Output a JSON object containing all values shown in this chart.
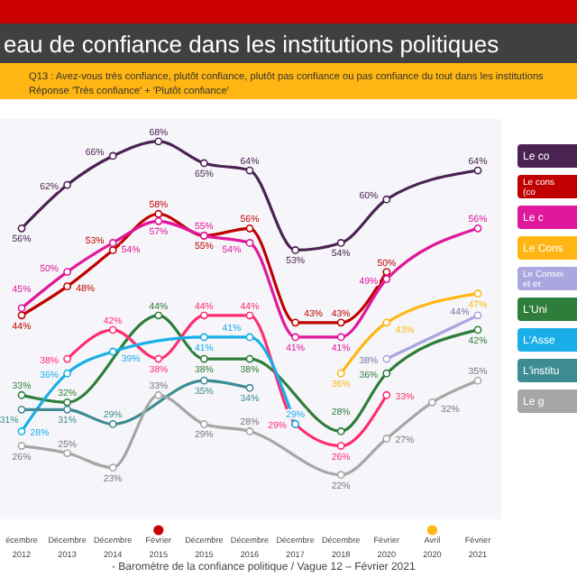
{
  "chart_data": {
    "type": "line",
    "title": "eau de confiance dans les institutions politiques",
    "subtitle": "Q13 : Avez-vous très confiance, plutôt confiance, plutôt pas confiance ou pas confiance du tout dans les institutions\nRéponse 'Très confiance' + 'Plutôt confiance'",
    "categories": [
      "écembre 2012",
      "Décembre 2013",
      "Décembre 2014",
      "Février 2015",
      "Décembre 2015",
      "Décembre 2016",
      "Décembre 2017",
      "Décembre 2018",
      "Février 2020",
      "Avril 2020",
      "Février 2021"
    ],
    "marker": "circle",
    "legend": "right",
    "series": [
      {
        "name": "Le co",
        "color": "#4b2352",
        "values": [
          56,
          62,
          66,
          68,
          65,
          64,
          53,
          54,
          60,
          null,
          64
        ],
        "value_labels": [
          "56%",
          "62%",
          "66%",
          "68%",
          "65%",
          "64%",
          "53%",
          "54%",
          "60%",
          null,
          "64%"
        ]
      },
      {
        "name": "Le cons\n(co",
        "color": "#c00000",
        "values": [
          44,
          48,
          53,
          58,
          55,
          56,
          43,
          43,
          50,
          null,
          null
        ],
        "value_labels": [
          "44%",
          "48%",
          "53%",
          "58%",
          "55%",
          "56%",
          "43%",
          "43%",
          "50%",
          null,
          null
        ]
      },
      {
        "name": "Le c",
        "color": "#e0189b",
        "values": [
          45,
          50,
          54,
          57,
          55,
          54,
          41,
          41,
          49,
          null,
          56
        ],
        "value_labels": [
          "45%",
          "50%",
          "54%",
          "57%",
          "55%",
          "54%",
          "41%",
          "41%",
          "49%",
          null,
          "56%"
        ]
      },
      {
        "name": "Le Cons",
        "color": "#ffb612",
        "values": [
          null,
          null,
          null,
          null,
          null,
          null,
          null,
          36,
          43,
          null,
          47
        ],
        "value_labels": [
          null,
          null,
          null,
          null,
          null,
          null,
          null,
          "36%",
          "43%",
          null,
          "47%"
        ]
      },
      {
        "name": "Le Consei\net er",
        "color": "#a9a6e0",
        "values": [
          null,
          null,
          null,
          null,
          null,
          null,
          null,
          null,
          38,
          null,
          44
        ],
        "value_labels": [
          null,
          null,
          null,
          null,
          null,
          null,
          null,
          null,
          "38%",
          null,
          "44%"
        ]
      },
      {
        "name": "L'Uni",
        "color": "#2e7d3a",
        "values": [
          33,
          32,
          null,
          44,
          38,
          38,
          null,
          28,
          36,
          null,
          42
        ],
        "value_labels": [
          "33%",
          "32%",
          null,
          "44%",
          "38%",
          "38%",
          null,
          "28%",
          "36%",
          null,
          "42%"
        ]
      },
      {
        "color": "#ff2d6f",
        "values": [
          null,
          38,
          42,
          38,
          44,
          44,
          29,
          26,
          33,
          null,
          null
        ],
        "value_labels": [
          null,
          "38%",
          "42%",
          "38%",
          "44%",
          "44%",
          "29%",
          "26%",
          "33%",
          null,
          null
        ]
      },
      {
        "name": "L'Asse",
        "color": "#1aaee8",
        "values": [
          28,
          36,
          39,
          null,
          41,
          41,
          29,
          null,
          null,
          null,
          null
        ],
        "value_labels": [
          "28%",
          "36%",
          "39%",
          null,
          "41%",
          "41%",
          "29%",
          null,
          null,
          null,
          null
        ]
      },
      {
        "name": "L'institu",
        "color": "#3c8c91",
        "values": [
          31,
          31,
          29,
          null,
          35,
          34,
          null,
          null,
          null,
          null,
          null
        ],
        "value_labels": [
          "31%",
          "31%",
          "29%",
          null,
          "35%",
          "34%",
          null,
          null,
          null,
          null,
          null
        ]
      },
      {
        "name": "Le g",
        "color": "#a6a6a6",
        "values": [
          26,
          25,
          23,
          33,
          29,
          28,
          null,
          22,
          27,
          32,
          35
        ],
        "value_labels": [
          "26%",
          "25%",
          "23%",
          "33%",
          "29%",
          "28%",
          null,
          "22%",
          "27%",
          "32%",
          "35%"
        ]
      }
    ],
    "annotations": [
      "- Baromètre de la confiance politique / Vague 12 – Février 2021"
    ]
  }
}
